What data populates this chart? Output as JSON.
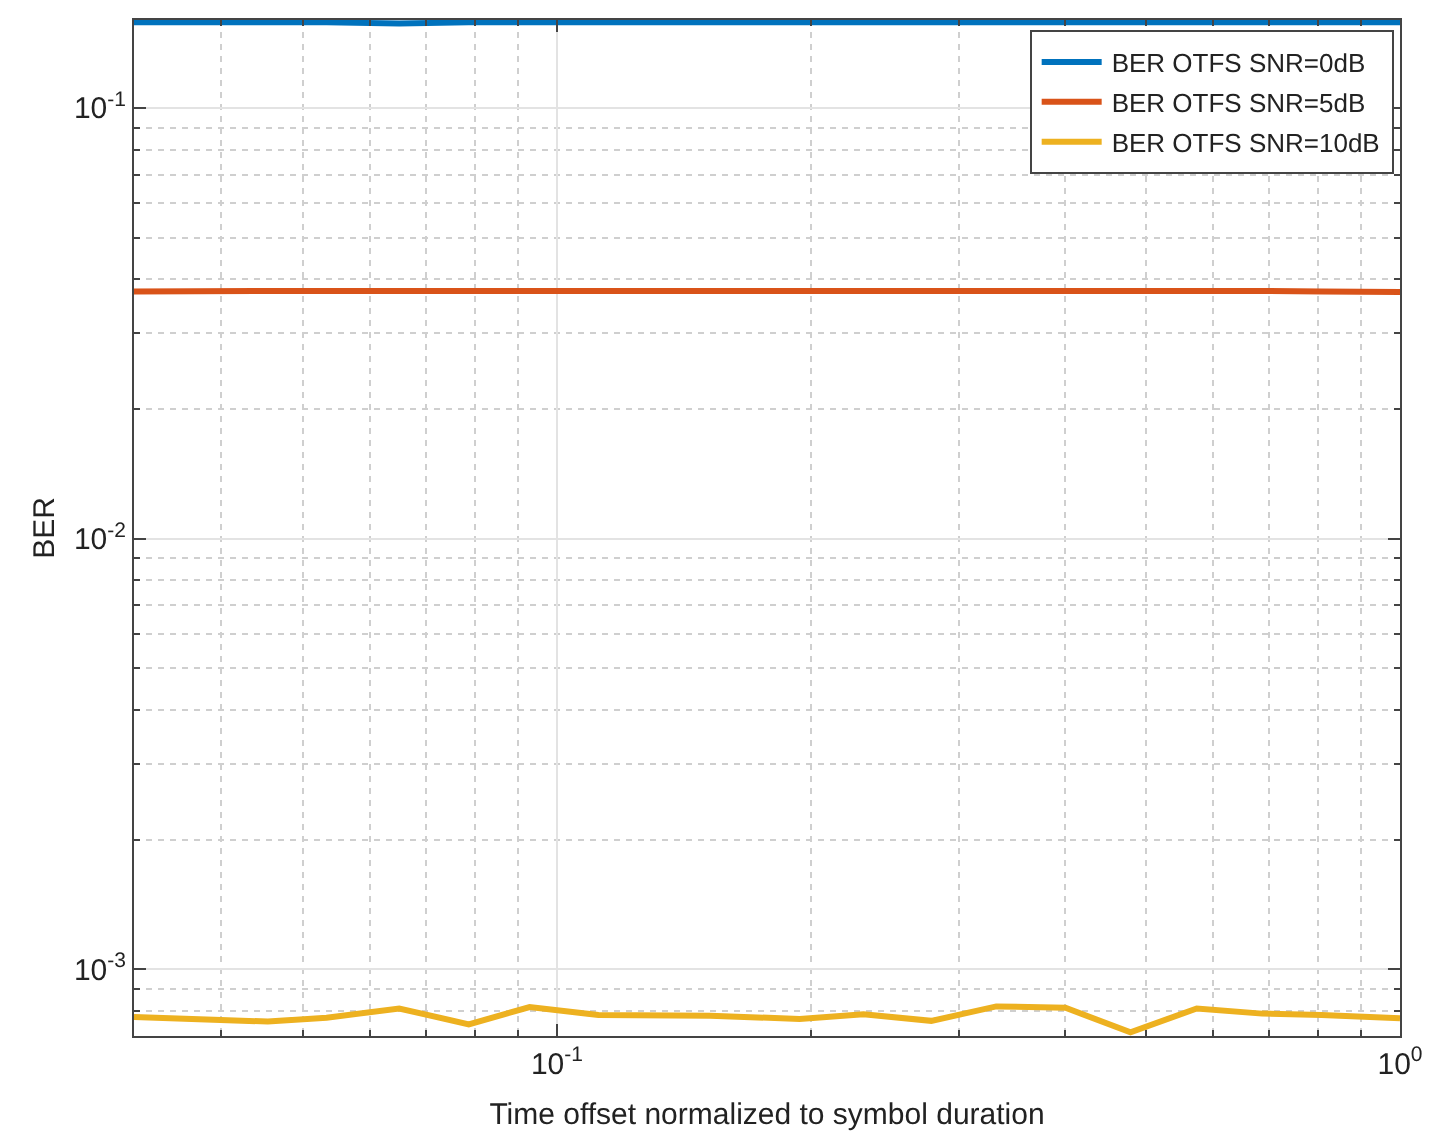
{
  "chart_data": {
    "type": "line",
    "xlabel": "Time offset normalized to symbol duration",
    "ylabel": "BER",
    "x": [
      0.0315,
      0.0454,
      0.0533,
      0.065,
      0.0786,
      0.0928,
      0.112,
      0.152,
      0.194,
      0.231,
      0.278,
      0.332,
      0.401,
      0.479,
      0.574,
      0.686,
      0.807,
      1
    ],
    "series": [
      {
        "name": "BER OTFS SNR=0dB",
        "color": "#0072bd",
        "values": [
          0.158,
          0.158,
          0.158,
          0.157,
          0.158,
          0.158,
          0.158,
          0.158,
          0.158,
          0.158,
          0.158,
          0.158,
          0.158,
          0.158,
          0.158,
          0.158,
          0.158,
          0.158
        ]
      },
      {
        "name": "BER OTFS SNR=5dB",
        "color": "#d95319",
        "values": [
          0.0375,
          0.0376,
          0.0376,
          0.0376,
          0.0376,
          0.0376,
          0.0376,
          0.0376,
          0.0376,
          0.0376,
          0.0376,
          0.0376,
          0.0376,
          0.0376,
          0.0376,
          0.0376,
          0.0375,
          0.0374
        ]
      },
      {
        "name": "BER OTFS SNR=10dB",
        "color": "#edb120",
        "values": [
          0.000775,
          0.000756,
          0.000772,
          0.000811,
          0.000745,
          0.000817,
          0.000783,
          0.00078,
          0.000767,
          0.000786,
          0.000759,
          0.00082,
          0.000814,
          0.000714,
          0.000811,
          0.000789,
          0.000783,
          0.00077
        ]
      }
    ],
    "log": "xy",
    "xlim": [
      0.0315,
      1
    ],
    "ylim": [
      0.0007,
      0.16
    ],
    "xticks": [
      {
        "value": 0.1,
        "label": "10$^{-1}$"
      },
      {
        "value": 1,
        "label": "10$^{0}$"
      }
    ],
    "yticks": [
      {
        "value": 0.001,
        "label": "10$^{-3}$"
      },
      {
        "value": 0.01,
        "label": "10$^{-2}$"
      },
      {
        "value": 0.1,
        "label": "10$^{-1}$"
      }
    ],
    "grid": true,
    "legend": "top right",
    "marker": "none",
    "line_style": "solid"
  }
}
